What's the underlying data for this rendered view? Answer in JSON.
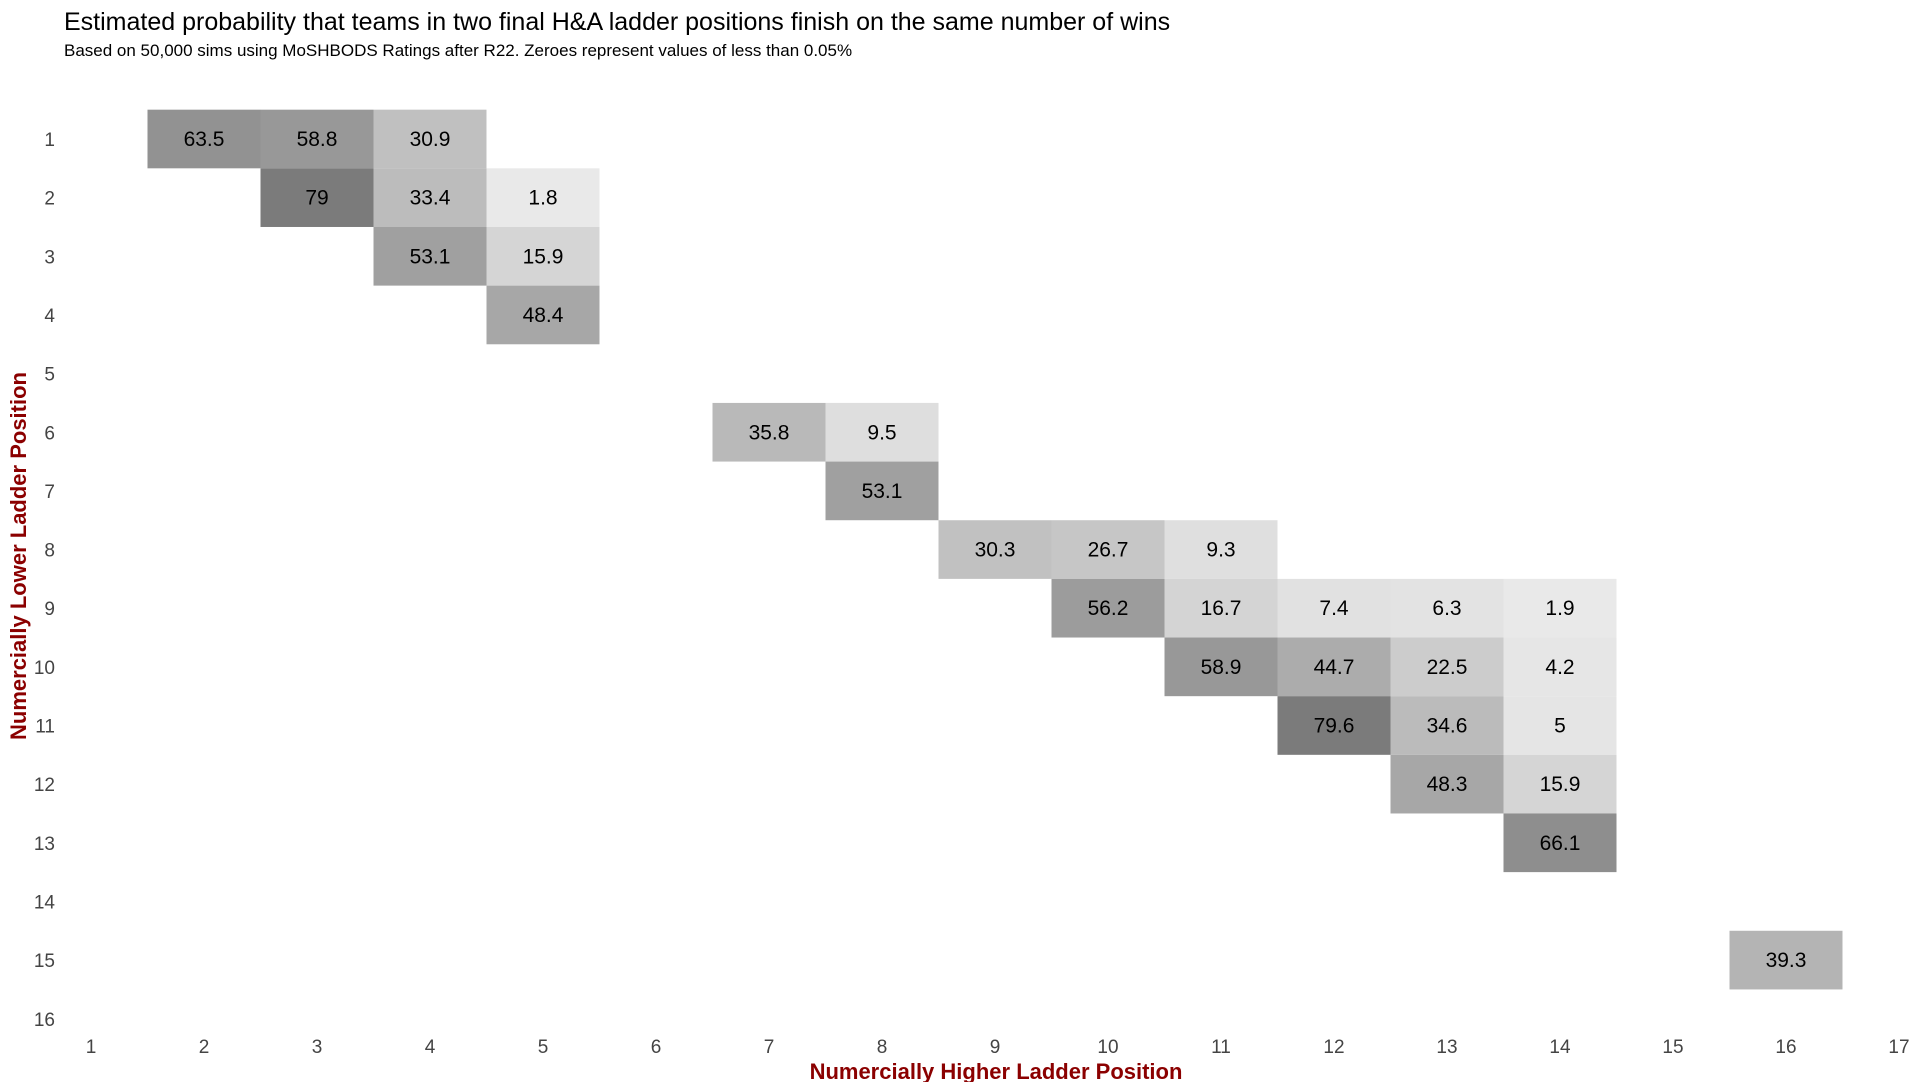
{
  "chart_data": {
    "type": "heatmap",
    "title": "Estimated probability that teams in two final H&A ladder positions finish on the same number of wins",
    "subtitle": "Based on 50,000 sims using MoSHBODS Ratings after R22. Zeroes represent values of less than 0.05%",
    "xlabel": "Numercially Higher Ladder Position",
    "ylabel": "Numercially Lower Ladder Position",
    "x_ticks": [
      "1",
      "2",
      "3",
      "4",
      "5",
      "6",
      "7",
      "8",
      "9",
      "10",
      "11",
      "12",
      "13",
      "14",
      "15",
      "16",
      "17"
    ],
    "y_ticks": [
      "1",
      "2",
      "3",
      "4",
      "5",
      "6",
      "7",
      "8",
      "9",
      "10",
      "11",
      "12",
      "13",
      "14",
      "15",
      "16"
    ],
    "x_range": [
      1,
      17
    ],
    "y_range": [
      1,
      16
    ],
    "color_low": "#ececec",
    "color_high": "#7a7a7a",
    "value_range": [
      0,
      80
    ],
    "axis_label_color": "#8b0000",
    "grid": false,
    "cells": [
      {
        "x": 2,
        "y": 1,
        "value": 63.5,
        "label": "63.5"
      },
      {
        "x": 3,
        "y": 1,
        "value": 58.8,
        "label": "58.8"
      },
      {
        "x": 4,
        "y": 1,
        "value": 30.9,
        "label": "30.9"
      },
      {
        "x": 3,
        "y": 2,
        "value": 79,
        "label": "79"
      },
      {
        "x": 4,
        "y": 2,
        "value": 33.4,
        "label": "33.4"
      },
      {
        "x": 5,
        "y": 2,
        "value": 1.8,
        "label": "1.8"
      },
      {
        "x": 4,
        "y": 3,
        "value": 53.1,
        "label": "53.1"
      },
      {
        "x": 5,
        "y": 3,
        "value": 15.9,
        "label": "15.9"
      },
      {
        "x": 5,
        "y": 4,
        "value": 48.4,
        "label": "48.4"
      },
      {
        "x": 7,
        "y": 6,
        "value": 35.8,
        "label": "35.8"
      },
      {
        "x": 8,
        "y": 6,
        "value": 9.5,
        "label": "9.5"
      },
      {
        "x": 8,
        "y": 7,
        "value": 53.1,
        "label": "53.1"
      },
      {
        "x": 9,
        "y": 8,
        "value": 30.3,
        "label": "30.3"
      },
      {
        "x": 10,
        "y": 8,
        "value": 26.7,
        "label": "26.7"
      },
      {
        "x": 11,
        "y": 8,
        "value": 9.3,
        "label": "9.3"
      },
      {
        "x": 10,
        "y": 9,
        "value": 56.2,
        "label": "56.2"
      },
      {
        "x": 11,
        "y": 9,
        "value": 16.7,
        "label": "16.7"
      },
      {
        "x": 12,
        "y": 9,
        "value": 7.4,
        "label": "7.4"
      },
      {
        "x": 13,
        "y": 9,
        "value": 6.3,
        "label": "6.3"
      },
      {
        "x": 14,
        "y": 9,
        "value": 1.9,
        "label": "1.9"
      },
      {
        "x": 11,
        "y": 10,
        "value": 58.9,
        "label": "58.9"
      },
      {
        "x": 12,
        "y": 10,
        "value": 44.7,
        "label": "44.7"
      },
      {
        "x": 13,
        "y": 10,
        "value": 22.5,
        "label": "22.5"
      },
      {
        "x": 14,
        "y": 10,
        "value": 4.2,
        "label": "4.2"
      },
      {
        "x": 12,
        "y": 11,
        "value": 79.6,
        "label": "79.6"
      },
      {
        "x": 13,
        "y": 11,
        "value": 34.6,
        "label": "34.6"
      },
      {
        "x": 14,
        "y": 11,
        "value": 5,
        "label": "5"
      },
      {
        "x": 13,
        "y": 12,
        "value": 48.3,
        "label": "48.3"
      },
      {
        "x": 14,
        "y": 12,
        "value": 15.9,
        "label": "15.9"
      },
      {
        "x": 14,
        "y": 13,
        "value": 66.1,
        "label": "66.1"
      },
      {
        "x": 16,
        "y": 15,
        "value": 39.3,
        "label": "39.3"
      }
    ]
  }
}
